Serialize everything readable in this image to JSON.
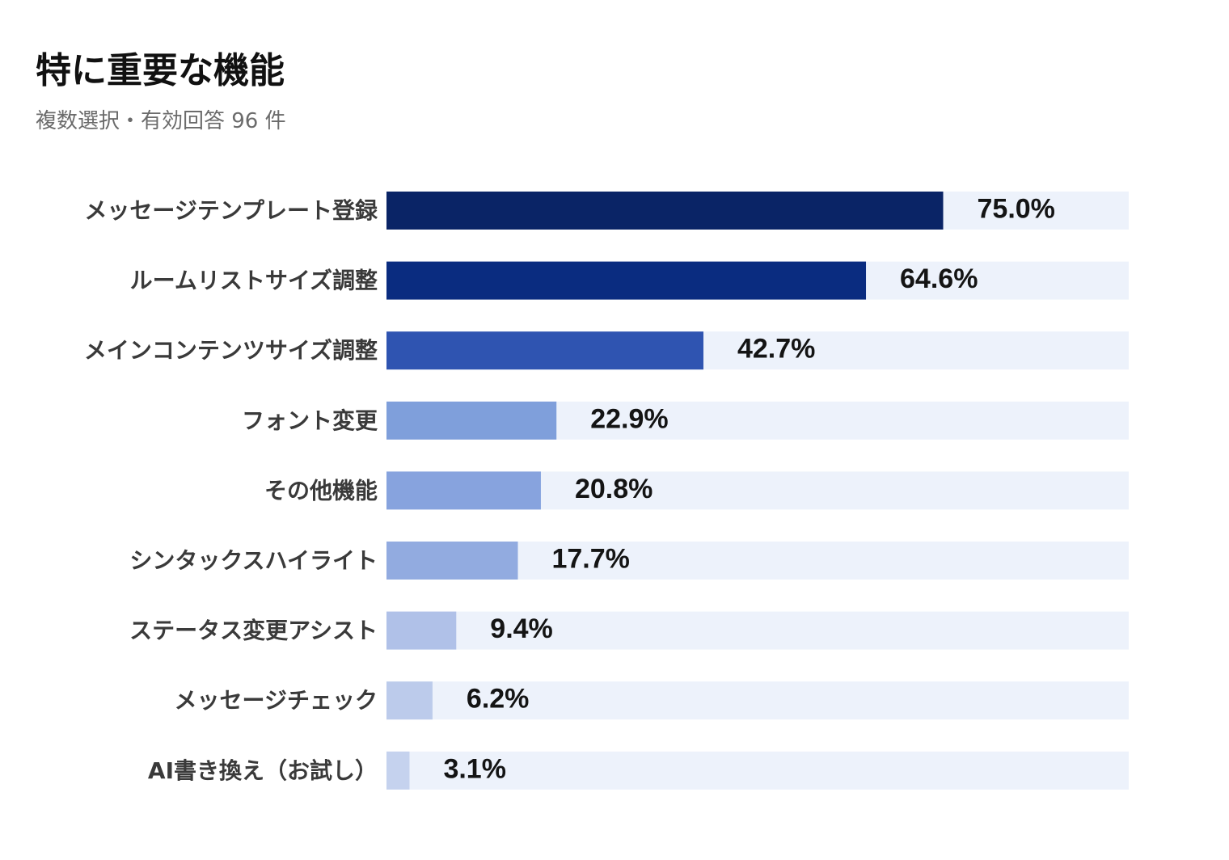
{
  "title": "特に重要な機能",
  "subtitle": "複数選択・有効回答 96 件",
  "chart_data": {
    "type": "bar",
    "orientation": "horizontal",
    "title": "特に重要な機能",
    "subtitle": "複数選択・有効回答 96 件",
    "xlim": [
      0,
      100
    ],
    "grid": false,
    "legend": "none",
    "categories": [
      "メッセージテンプレート登録",
      "ルームリストサイズ調整",
      "メインコンテンツサイズ調整",
      "フォント変更",
      "その他機能",
      "シンタックスハイライト",
      "ステータス変更アシスト",
      "メッセージチェック",
      "AI書き換え（お試し）"
    ],
    "values": [
      75.0,
      64.6,
      42.7,
      22.9,
      20.8,
      17.7,
      9.4,
      6.2,
      3.1
    ],
    "value_labels": [
      "75.0%",
      "64.6%",
      "42.7%",
      "22.9%",
      "20.8%",
      "17.7%",
      "9.4%",
      "6.2%",
      "3.1%"
    ],
    "colors": [
      "#0a2466",
      "#0a2c80",
      "#2f54b1",
      "#7f9fdb",
      "#87a3de",
      "#92abe0",
      "#b0c1e8",
      "#bccbeb",
      "#c5d2ee"
    ],
    "track_color": "#edf2fb"
  }
}
